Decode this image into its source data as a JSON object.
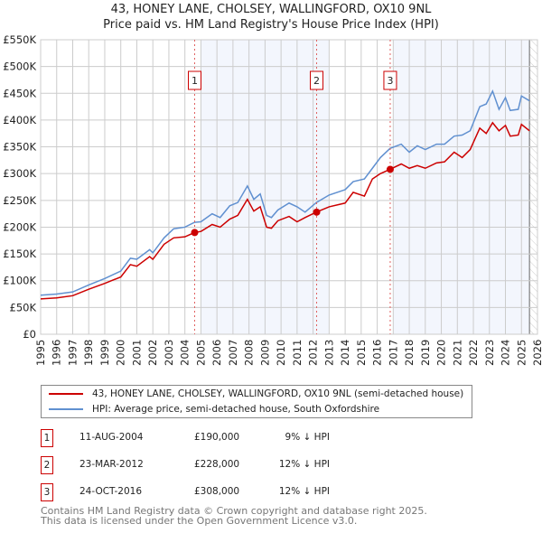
{
  "chart_data": {
    "type": "line",
    "title": "43, HONEY LANE, CHOLSEY, WALLINGFORD, OX10 9NL",
    "subtitle": "Price paid vs. HM Land Registry's House Price Index (HPI)",
    "xlim": [
      1995,
      2026
    ],
    "ylim": [
      0,
      550000
    ],
    "x_ticks": [
      "1995",
      "1996",
      "1997",
      "1998",
      "1999",
      "2000",
      "2001",
      "2002",
      "2003",
      "2004",
      "2005",
      "2006",
      "2007",
      "2008",
      "2009",
      "2010",
      "2011",
      "2012",
      "2013",
      "2014",
      "2015",
      "2016",
      "2017",
      "2018",
      "2019",
      "2020",
      "2021",
      "2022",
      "2023",
      "2024",
      "2025",
      "2026"
    ],
    "y_ticks": [
      {
        "v": 0,
        "l": "£0"
      },
      {
        "v": 50000,
        "l": "£50K"
      },
      {
        "v": 100000,
        "l": "£100K"
      },
      {
        "v": 150000,
        "l": "£150K"
      },
      {
        "v": 200000,
        "l": "£200K"
      },
      {
        "v": 250000,
        "l": "£250K"
      },
      {
        "v": 300000,
        "l": "£300K"
      },
      {
        "v": 350000,
        "l": "£350K"
      },
      {
        "v": 400000,
        "l": "£400K"
      },
      {
        "v": 450000,
        "l": "£450K"
      },
      {
        "v": 500000,
        "l": "£500K"
      },
      {
        "v": 550000,
        "l": "£550K"
      }
    ],
    "grid": true,
    "shaded_ranges": [
      [
        2005,
        2013
      ],
      [
        2017,
        2025.5
      ]
    ],
    "future_hatch_from": 2025.5,
    "series": [
      {
        "name": "43, HONEY LANE, CHOLSEY, WALLINGFORD, OX10 9NL (semi-detached house)",
        "color": "#cc0000",
        "points": [
          [
            1995,
            66
          ],
          [
            1996,
            68
          ],
          [
            1997,
            72
          ],
          [
            1998,
            84
          ],
          [
            1999,
            95
          ],
          [
            2000,
            107
          ],
          [
            2000.6,
            130
          ],
          [
            2001,
            127
          ],
          [
            2001.8,
            145
          ],
          [
            2002,
            140
          ],
          [
            2002.7,
            168
          ],
          [
            2003.3,
            180
          ],
          [
            2004,
            182
          ],
          [
            2004.6,
            190
          ],
          [
            2005,
            192
          ],
          [
            2005.7,
            205
          ],
          [
            2006.2,
            200
          ],
          [
            2006.8,
            215
          ],
          [
            2007.3,
            222
          ],
          [
            2007.9,
            252
          ],
          [
            2008.3,
            230
          ],
          [
            2008.7,
            238
          ],
          [
            2009.1,
            200
          ],
          [
            2009.4,
            198
          ],
          [
            2009.8,
            212
          ],
          [
            2010.5,
            220
          ],
          [
            2011,
            210
          ],
          [
            2011.5,
            218
          ],
          [
            2012.2,
            228
          ],
          [
            2013,
            238
          ],
          [
            2014,
            245
          ],
          [
            2014.5,
            265
          ],
          [
            2015.2,
            258
          ],
          [
            2015.7,
            290
          ],
          [
            2016.2,
            300
          ],
          [
            2016.8,
            308
          ],
          [
            2017.5,
            318
          ],
          [
            2018,
            310
          ],
          [
            2018.5,
            315
          ],
          [
            2019,
            310
          ],
          [
            2019.7,
            320
          ],
          [
            2020.2,
            322
          ],
          [
            2020.8,
            340
          ],
          [
            2021.3,
            330
          ],
          [
            2021.8,
            345
          ],
          [
            2022.4,
            385
          ],
          [
            2022.8,
            375
          ],
          [
            2023.2,
            395
          ],
          [
            2023.6,
            380
          ],
          [
            2024,
            390
          ],
          [
            2024.3,
            370
          ],
          [
            2024.8,
            372
          ],
          [
            2025,
            392
          ],
          [
            2025.5,
            380
          ]
        ]
      },
      {
        "name": "HPI: Average price, semi-detached house, South Oxfordshire",
        "color": "#6090d0",
        "points": [
          [
            1995,
            73
          ],
          [
            1996,
            75
          ],
          [
            1997,
            79
          ],
          [
            1998,
            92
          ],
          [
            1999,
            104
          ],
          [
            2000,
            118
          ],
          [
            2000.6,
            142
          ],
          [
            2001,
            140
          ],
          [
            2001.8,
            158
          ],
          [
            2002,
            152
          ],
          [
            2002.7,
            180
          ],
          [
            2003.3,
            197
          ],
          [
            2004,
            200
          ],
          [
            2004.6,
            209
          ],
          [
            2005,
            210
          ],
          [
            2005.7,
            225
          ],
          [
            2006.2,
            218
          ],
          [
            2006.8,
            240
          ],
          [
            2007.3,
            246
          ],
          [
            2007.9,
            277
          ],
          [
            2008.3,
            252
          ],
          [
            2008.7,
            262
          ],
          [
            2009.1,
            222
          ],
          [
            2009.4,
            218
          ],
          [
            2009.8,
            232
          ],
          [
            2010.5,
            245
          ],
          [
            2011,
            238
          ],
          [
            2011.5,
            228
          ],
          [
            2012.2,
            246
          ],
          [
            2013,
            260
          ],
          [
            2014,
            270
          ],
          [
            2014.5,
            285
          ],
          [
            2015.2,
            290
          ],
          [
            2015.7,
            310
          ],
          [
            2016.2,
            330
          ],
          [
            2016.8,
            347
          ],
          [
            2017.5,
            355
          ],
          [
            2018,
            340
          ],
          [
            2018.5,
            352
          ],
          [
            2019,
            345
          ],
          [
            2019.7,
            355
          ],
          [
            2020.2,
            355
          ],
          [
            2020.8,
            370
          ],
          [
            2021.3,
            372
          ],
          [
            2021.8,
            380
          ],
          [
            2022.4,
            425
          ],
          [
            2022.8,
            430
          ],
          [
            2023.2,
            454
          ],
          [
            2023.6,
            420
          ],
          [
            2024,
            442
          ],
          [
            2024.3,
            418
          ],
          [
            2024.8,
            420
          ],
          [
            2025,
            445
          ],
          [
            2025.5,
            436
          ]
        ]
      }
    ],
    "sales": [
      {
        "id": "1",
        "x": 2004.61,
        "price": 190000,
        "date": "11-AUG-2004",
        "price_label": "£190,000",
        "hpi_diff": "9% ↓ HPI"
      },
      {
        "id": "2",
        "x": 2012.22,
        "price": 228000,
        "date": "23-MAR-2012",
        "price_label": "£228,000",
        "hpi_diff": "12% ↓ HPI"
      },
      {
        "id": "3",
        "x": 2016.81,
        "price": 308000,
        "date": "24-OCT-2016",
        "price_label": "£308,000",
        "hpi_diff": "12% ↓ HPI"
      }
    ]
  },
  "footer": {
    "line1": "Contains HM Land Registry data © Crown copyright and database right 2025.",
    "line2": "This data is licensed under the Open Government Licence v3.0."
  }
}
